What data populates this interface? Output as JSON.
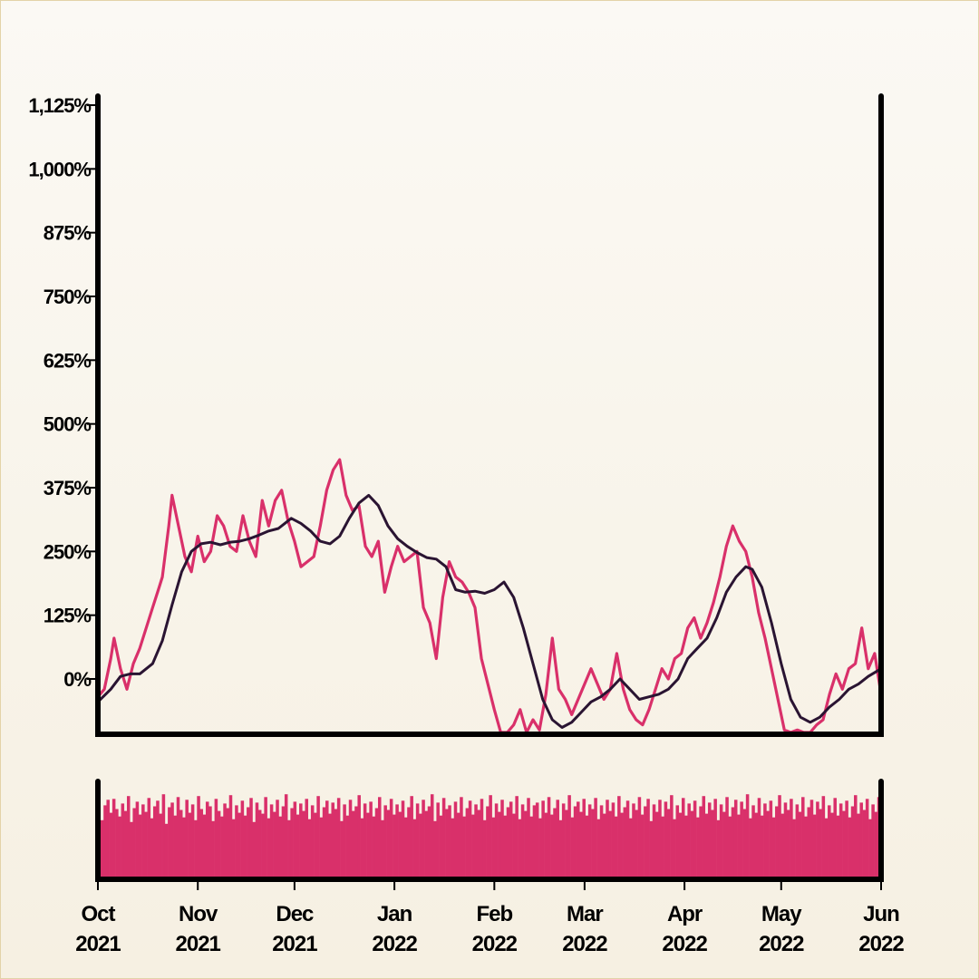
{
  "chart_data": {
    "type": "line",
    "title": "",
    "xlabel": "",
    "ylabel": "",
    "x_range": [
      "2021-10-01",
      "2022-06-01"
    ],
    "ylim": [
      -170,
      1160
    ],
    "y_ticks": [
      0,
      125,
      250,
      375,
      500,
      625,
      750,
      875,
      1000,
      1125
    ],
    "y_tick_labels": [
      "0%",
      "125%",
      "250%",
      "375%",
      "500%",
      "625%",
      "750%",
      "875%",
      "1,000%",
      "1,125%"
    ],
    "x_ticks": [
      {
        "date": "2021-10-01",
        "month": "Oct",
        "year": "2021"
      },
      {
        "date": "2021-11-01",
        "month": "Nov",
        "year": "2021"
      },
      {
        "date": "2021-12-01",
        "month": "Dec",
        "year": "2021"
      },
      {
        "date": "2022-01-01",
        "month": "Jan",
        "year": "2022"
      },
      {
        "date": "2022-02-01",
        "month": "Feb",
        "year": "2022"
      },
      {
        "date": "2022-03-01",
        "month": "Mar",
        "year": "2022"
      },
      {
        "date": "2022-04-01",
        "month": "Apr",
        "year": "2022"
      },
      {
        "date": "2022-05-01",
        "month": "May",
        "year": "2022"
      },
      {
        "date": "2022-06-01",
        "month": "Jun",
        "year": "2022"
      }
    ],
    "grid": false,
    "series": [
      {
        "role": "price",
        "color": "#d9306a",
        "points": [
          [
            "2021-10-01",
            -35
          ],
          [
            "2021-10-03",
            -20
          ],
          [
            "2021-10-05",
            40
          ],
          [
            "2021-10-06",
            80
          ],
          [
            "2021-10-08",
            20
          ],
          [
            "2021-10-10",
            -20
          ],
          [
            "2021-10-12",
            30
          ],
          [
            "2021-10-14",
            60
          ],
          [
            "2021-10-16",
            100
          ],
          [
            "2021-10-18",
            140
          ],
          [
            "2021-10-20",
            180
          ],
          [
            "2021-10-21",
            200
          ],
          [
            "2021-10-23",
            300
          ],
          [
            "2021-10-24",
            360
          ],
          [
            "2021-10-26",
            300
          ],
          [
            "2021-10-28",
            240
          ],
          [
            "2021-10-30",
            210
          ],
          [
            "2021-11-01",
            280
          ],
          [
            "2021-11-03",
            230
          ],
          [
            "2021-11-05",
            250
          ],
          [
            "2021-11-07",
            320
          ],
          [
            "2021-11-09",
            300
          ],
          [
            "2021-11-11",
            260
          ],
          [
            "2021-11-13",
            250
          ],
          [
            "2021-11-15",
            320
          ],
          [
            "2021-11-17",
            270
          ],
          [
            "2021-11-19",
            240
          ],
          [
            "2021-11-21",
            350
          ],
          [
            "2021-11-23",
            300
          ],
          [
            "2021-11-25",
            350
          ],
          [
            "2021-11-27",
            370
          ],
          [
            "2021-11-29",
            310
          ],
          [
            "2021-12-01",
            270
          ],
          [
            "2021-12-03",
            220
          ],
          [
            "2021-12-05",
            230
          ],
          [
            "2021-12-07",
            240
          ],
          [
            "2021-12-09",
            300
          ],
          [
            "2021-12-11",
            370
          ],
          [
            "2021-12-13",
            410
          ],
          [
            "2021-12-15",
            430
          ],
          [
            "2021-12-17",
            360
          ],
          [
            "2021-12-19",
            330
          ],
          [
            "2021-12-21",
            340
          ],
          [
            "2021-12-23",
            260
          ],
          [
            "2021-12-25",
            240
          ],
          [
            "2021-12-27",
            270
          ],
          [
            "2021-12-29",
            170
          ],
          [
            "2021-12-31",
            220
          ],
          [
            "2022-01-02",
            260
          ],
          [
            "2022-01-04",
            230
          ],
          [
            "2022-01-06",
            240
          ],
          [
            "2022-01-08",
            250
          ],
          [
            "2022-01-10",
            140
          ],
          [
            "2022-01-12",
            110
          ],
          [
            "2022-01-14",
            40
          ],
          [
            "2022-01-16",
            160
          ],
          [
            "2022-01-18",
            230
          ],
          [
            "2022-01-20",
            200
          ],
          [
            "2022-01-22",
            190
          ],
          [
            "2022-01-24",
            170
          ],
          [
            "2022-01-26",
            140
          ],
          [
            "2022-01-28",
            40
          ],
          [
            "2022-01-30",
            -10
          ],
          [
            "2022-02-01",
            -60
          ],
          [
            "2022-02-03",
            -110
          ],
          [
            "2022-02-05",
            -140
          ],
          [
            "2022-02-07",
            -90
          ],
          [
            "2022-02-09",
            -60
          ],
          [
            "2022-02-11",
            -110
          ],
          [
            "2022-02-13",
            -80
          ],
          [
            "2022-02-15",
            -100
          ],
          [
            "2022-02-17",
            -30
          ],
          [
            "2022-02-19",
            80
          ],
          [
            "2022-02-21",
            -20
          ],
          [
            "2022-02-23",
            -40
          ],
          [
            "2022-02-25",
            -70
          ],
          [
            "2022-02-27",
            -40
          ],
          [
            "2022-03-01",
            -10
          ],
          [
            "2022-03-03",
            20
          ],
          [
            "2022-03-05",
            -10
          ],
          [
            "2022-03-07",
            -40
          ],
          [
            "2022-03-09",
            -20
          ],
          [
            "2022-03-11",
            50
          ],
          [
            "2022-03-13",
            -20
          ],
          [
            "2022-03-15",
            -60
          ],
          [
            "2022-03-17",
            -80
          ],
          [
            "2022-03-19",
            -90
          ],
          [
            "2022-03-21",
            -60
          ],
          [
            "2022-03-23",
            -20
          ],
          [
            "2022-03-25",
            20
          ],
          [
            "2022-03-27",
            0
          ],
          [
            "2022-03-29",
            40
          ],
          [
            "2022-03-31",
            50
          ],
          [
            "2022-04-02",
            100
          ],
          [
            "2022-04-04",
            120
          ],
          [
            "2022-04-06",
            80
          ],
          [
            "2022-04-08",
            110
          ],
          [
            "2022-04-10",
            150
          ],
          [
            "2022-04-12",
            200
          ],
          [
            "2022-04-14",
            260
          ],
          [
            "2022-04-16",
            300
          ],
          [
            "2022-04-18",
            270
          ],
          [
            "2022-04-20",
            250
          ],
          [
            "2022-04-22",
            200
          ],
          [
            "2022-04-24",
            130
          ],
          [
            "2022-04-26",
            80
          ],
          [
            "2022-04-28",
            20
          ],
          [
            "2022-04-30",
            -40
          ],
          [
            "2022-05-02",
            -100
          ],
          [
            "2022-05-04",
            -130
          ],
          [
            "2022-05-06",
            -100
          ],
          [
            "2022-05-08",
            -140
          ],
          [
            "2022-05-10",
            -120
          ],
          [
            "2022-05-12",
            -90
          ],
          [
            "2022-05-14",
            -80
          ],
          [
            "2022-05-16",
            -30
          ],
          [
            "2022-05-18",
            10
          ],
          [
            "2022-05-20",
            -20
          ],
          [
            "2022-05-22",
            20
          ],
          [
            "2022-05-24",
            30
          ],
          [
            "2022-05-26",
            100
          ],
          [
            "2022-05-28",
            20
          ],
          [
            "2022-05-30",
            50
          ],
          [
            "2022-06-01",
            -30
          ]
        ]
      },
      {
        "role": "moving-average",
        "color": "#2a1432",
        "points": [
          [
            "2021-10-01",
            -45
          ],
          [
            "2021-10-05",
            -20
          ],
          [
            "2021-10-08",
            5
          ],
          [
            "2021-10-11",
            10
          ],
          [
            "2021-10-14",
            10
          ],
          [
            "2021-10-18",
            30
          ],
          [
            "2021-10-21",
            75
          ],
          [
            "2021-10-24",
            145
          ],
          [
            "2021-10-27",
            210
          ],
          [
            "2021-10-30",
            250
          ],
          [
            "2021-11-02",
            265
          ],
          [
            "2021-11-05",
            268
          ],
          [
            "2021-11-08",
            263
          ],
          [
            "2021-11-11",
            268
          ],
          [
            "2021-11-14",
            270
          ],
          [
            "2021-11-17",
            275
          ],
          [
            "2021-11-20",
            282
          ],
          [
            "2021-11-23",
            290
          ],
          [
            "2021-11-26",
            295
          ],
          [
            "2021-11-28",
            305
          ],
          [
            "2021-11-30",
            315
          ],
          [
            "2021-12-03",
            305
          ],
          [
            "2021-12-06",
            290
          ],
          [
            "2021-12-09",
            270
          ],
          [
            "2021-12-12",
            265
          ],
          [
            "2021-12-15",
            280
          ],
          [
            "2021-12-18",
            315
          ],
          [
            "2021-12-21",
            345
          ],
          [
            "2021-12-24",
            360
          ],
          [
            "2021-12-27",
            340
          ],
          [
            "2021-12-30",
            300
          ],
          [
            "2022-01-02",
            275
          ],
          [
            "2022-01-05",
            260
          ],
          [
            "2022-01-08",
            248
          ],
          [
            "2022-01-11",
            238
          ],
          [
            "2022-01-14",
            235
          ],
          [
            "2022-01-17",
            220
          ],
          [
            "2022-01-20",
            175
          ],
          [
            "2022-01-23",
            170
          ],
          [
            "2022-01-26",
            172
          ],
          [
            "2022-01-29",
            168
          ],
          [
            "2022-02-01",
            175
          ],
          [
            "2022-02-04",
            190
          ],
          [
            "2022-02-07",
            160
          ],
          [
            "2022-02-10",
            100
          ],
          [
            "2022-02-13",
            30
          ],
          [
            "2022-02-16",
            -40
          ],
          [
            "2022-02-19",
            -80
          ],
          [
            "2022-02-22",
            -95
          ],
          [
            "2022-02-25",
            -85
          ],
          [
            "2022-02-28",
            -65
          ],
          [
            "2022-03-03",
            -45
          ],
          [
            "2022-03-06",
            -35
          ],
          [
            "2022-03-09",
            -20
          ],
          [
            "2022-03-12",
            0
          ],
          [
            "2022-03-15",
            -20
          ],
          [
            "2022-03-18",
            -40
          ],
          [
            "2022-03-21",
            -35
          ],
          [
            "2022-03-24",
            -30
          ],
          [
            "2022-03-27",
            -20
          ],
          [
            "2022-03-30",
            0
          ],
          [
            "2022-04-02",
            40
          ],
          [
            "2022-04-05",
            60
          ],
          [
            "2022-04-08",
            80
          ],
          [
            "2022-04-11",
            120
          ],
          [
            "2022-04-14",
            170
          ],
          [
            "2022-04-17",
            200
          ],
          [
            "2022-04-20",
            220
          ],
          [
            "2022-04-22",
            215
          ],
          [
            "2022-04-25",
            180
          ],
          [
            "2022-04-28",
            110
          ],
          [
            "2022-05-01",
            30
          ],
          [
            "2022-05-04",
            -40
          ],
          [
            "2022-05-07",
            -75
          ],
          [
            "2022-05-10",
            -85
          ],
          [
            "2022-05-13",
            -75
          ],
          [
            "2022-05-16",
            -55
          ],
          [
            "2022-05-19",
            -40
          ],
          [
            "2022-05-22",
            -20
          ],
          [
            "2022-05-25",
            -10
          ],
          [
            "2022-05-28",
            5
          ],
          [
            "2022-06-01",
            20
          ]
        ]
      }
    ],
    "volume": {
      "color": "#d9306a",
      "scale_max": 100,
      "values": [
        62,
        78,
        84,
        70,
        85,
        74,
        66,
        80,
        72,
        88,
        60,
        75,
        82,
        68,
        79,
        71,
        86,
        64,
        77,
        83,
        69,
        90,
        58,
        76,
        81,
        67,
        87,
        73,
        65,
        84,
        70,
        79,
        62,
        88,
        74,
        68,
        82,
        77,
        61,
        85,
        72,
        66,
        80,
        75,
        89,
        63,
        78,
        70,
        83,
        67,
        76,
        86,
        60,
        81,
        73,
        69,
        87,
        64,
        79,
        71,
        84,
        66,
        77,
        90,
        62,
        75,
        82,
        68,
        80,
        72,
        85,
        63,
        78,
        70,
        88,
        65,
        76,
        83,
        69,
        81,
        74,
        86,
        61,
        79,
        67,
        84,
        72,
        77,
        89,
        64,
        80,
        70,
        82,
        66,
        75,
        87,
        62,
        78,
        73,
        85,
        68,
        79,
        71,
        83,
        65,
        76,
        88,
        63,
        80,
        69,
        84,
        72,
        77,
        90,
        61,
        81,
        67,
        86,
        74,
        78,
        64,
        82,
        70,
        87,
        66,
        75,
        83,
        68,
        79,
        73,
        85,
        62,
        77,
        89,
        65,
        80,
        71,
        84,
        67,
        76,
        82,
        69,
        88,
        63,
        79,
        72,
        86,
        66,
        78,
        81,
        64,
        83,
        70,
        87,
        68,
        75,
        84,
        62,
        80,
        73,
        89,
        65,
        77,
        82,
        71,
        85,
        67,
        79,
        74,
        86,
        63,
        78,
        69,
        84,
        72,
        81,
        66,
        88,
        70,
        76,
        83,
        64,
        80,
        73,
        87,
        68,
        77,
        85,
        61,
        79,
        71,
        84,
        66,
        82,
        74,
        89,
        63,
        78,
        70,
        86,
        67,
        80,
        72,
        83,
        65,
        77,
        88,
        69,
        81,
        73,
        85,
        62,
        79,
        71,
        87,
        66,
        76,
        84,
        68,
        82,
        74,
        90,
        64,
        78,
        70,
        86,
        67,
        80,
        72,
        83,
        65,
        77,
        89,
        69,
        81,
        73,
        85,
        63,
        79,
        71,
        87,
        66,
        76,
        84,
        68,
        82,
        74,
        88,
        64,
        78,
        70,
        86,
        67,
        80,
        72,
        83,
        65,
        77,
        89,
        69,
        81,
        73,
        85,
        63,
        79,
        71,
        87
      ]
    }
  }
}
